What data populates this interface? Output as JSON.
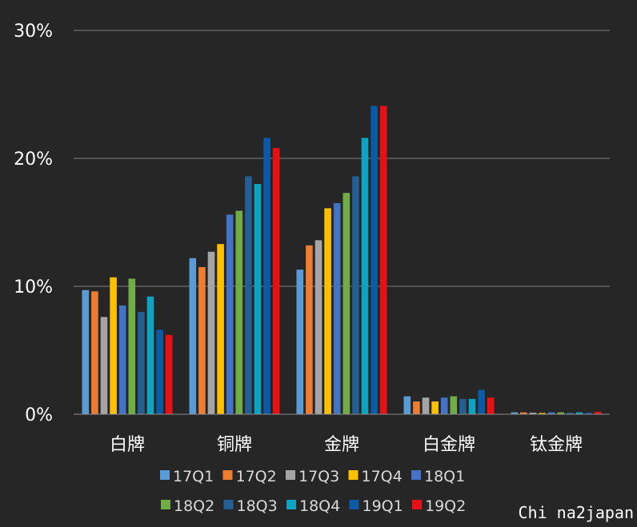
{
  "chart_data": {
    "type": "bar",
    "categories": [
      "白牌",
      "铜牌",
      "金牌",
      "白金牌",
      "钛金牌"
    ],
    "series": [
      {
        "name": "17Q1",
        "color": "#5B9BD5",
        "values": [
          9.7,
          12.2,
          11.3,
          1.4,
          0.15
        ]
      },
      {
        "name": "17Q2",
        "color": "#ED7D31",
        "values": [
          9.6,
          11.5,
          13.2,
          1.0,
          0.15
        ]
      },
      {
        "name": "17Q3",
        "color": "#A5A5A5",
        "values": [
          7.6,
          12.7,
          13.6,
          1.3,
          0.12
        ]
      },
      {
        "name": "17Q4",
        "color": "#FFC000",
        "values": [
          10.7,
          13.3,
          16.1,
          1.0,
          0.1
        ]
      },
      {
        "name": "18Q1",
        "color": "#4472C4",
        "values": [
          8.5,
          15.6,
          16.5,
          1.3,
          0.15
        ]
      },
      {
        "name": "18Q2",
        "color": "#70AD47",
        "values": [
          10.6,
          15.9,
          17.3,
          1.4,
          0.15
        ]
      },
      {
        "name": "18Q3",
        "color": "#255E91",
        "values": [
          8.0,
          18.6,
          18.6,
          1.2,
          0.12
        ]
      },
      {
        "name": "18Q4",
        "color": "#0FA3C1",
        "values": [
          9.2,
          18.0,
          21.6,
          1.2,
          0.15
        ]
      },
      {
        "name": "19Q1",
        "color": "#0B5AA6",
        "values": [
          6.6,
          21.6,
          24.1,
          1.9,
          0.12
        ]
      },
      {
        "name": "19Q2",
        "color": "#E81014",
        "values": [
          6.2,
          20.8,
          24.1,
          1.3,
          0.2
        ]
      }
    ],
    "yticks": [
      "0%",
      "10%",
      "20%",
      "30%"
    ],
    "ylim": [
      0,
      30
    ],
    "grid": true,
    "legend": "bottom",
    "title": "",
    "xlabel": "",
    "ylabel": ""
  },
  "watermark": "Chi na2japan"
}
